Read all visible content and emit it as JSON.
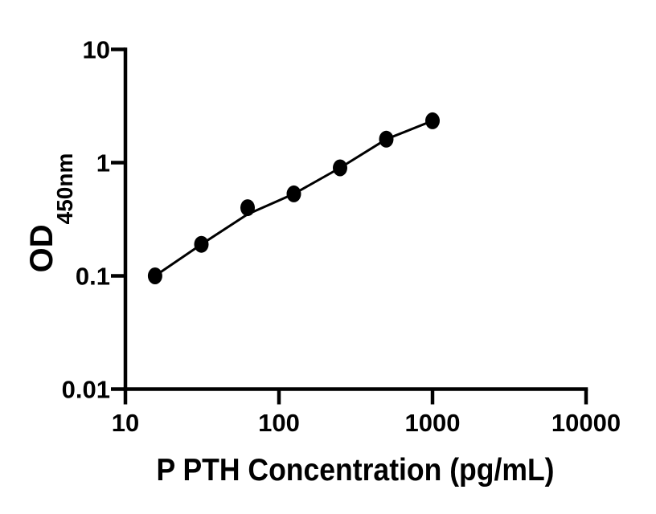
{
  "figure": {
    "background_color": "#ffffff",
    "axis_color": "#000000"
  },
  "chart_data": {
    "type": "scatter",
    "subtype": "standard-curve-with-fitted-line",
    "title": "",
    "xlabel": "P PTH Concentration (pg/mL)",
    "ylabel": "OD450nm",
    "ylabel_main": "OD",
    "ylabel_sub": "450nm",
    "x_scale": "log10",
    "y_scale": "log10",
    "xlim": [
      10,
      10000
    ],
    "ylim": [
      0.01,
      10
    ],
    "x_ticks": [
      "10",
      "100",
      "1000",
      "10000"
    ],
    "y_ticks": [
      "10",
      "1",
      "0.1",
      "0.01"
    ],
    "grid": false,
    "legend": false,
    "marker_color": "#000000",
    "line_color": "#000000",
    "series": [
      {
        "x": [
          15.6,
          31.25,
          62.5,
          125,
          250,
          500,
          1000
        ],
        "od": [
          0.1,
          0.19,
          0.4,
          0.53,
          0.9,
          1.61,
          2.34
        ],
        "fit_od": [
          0.1,
          0.19,
          0.35,
          0.53,
          0.9,
          1.61,
          2.34
        ]
      }
    ]
  }
}
